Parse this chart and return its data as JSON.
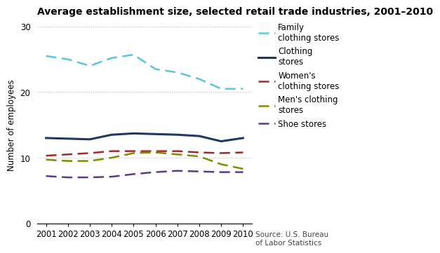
{
  "title": "Average establishment size, selected retail trade industries, 2001–2010",
  "ylabel": "Number of employees",
  "source": "Source: U.S. Bureau\nof Labor Statistics",
  "years": [
    2001,
    2002,
    2003,
    2004,
    2005,
    2006,
    2007,
    2008,
    2009,
    2010
  ],
  "series": [
    {
      "label": "Family\nclothing stores",
      "color": "#5BC8D5",
      "linestyle": "dashed",
      "linewidth": 1.8,
      "values": [
        25.5,
        25.0,
        24.0,
        25.2,
        25.7,
        23.5,
        23.0,
        22.0,
        20.5,
        20.5
      ]
    },
    {
      "label": "Clothing\nstores",
      "color": "#1F3864",
      "linestyle": "solid",
      "linewidth": 2.2,
      "values": [
        13.0,
        12.9,
        12.8,
        13.5,
        13.7,
        13.6,
        13.5,
        13.3,
        12.5,
        13.0
      ]
    },
    {
      "label": "Women's\nclothing stores",
      "color": "#9E2A2A",
      "linestyle": "dashed",
      "linewidth": 1.8,
      "values": [
        10.3,
        10.5,
        10.7,
        11.0,
        11.0,
        11.0,
        11.0,
        10.8,
        10.7,
        10.8
      ]
    },
    {
      "label": "Men's clothing\nstores",
      "color": "#7F8C00",
      "linestyle": "dashed",
      "linewidth": 1.8,
      "values": [
        9.7,
        9.5,
        9.5,
        10.0,
        10.7,
        10.8,
        10.5,
        10.2,
        9.0,
        8.3
      ]
    },
    {
      "label": "Shoe stores",
      "color": "#5B3A8C",
      "linestyle": "dashed",
      "linewidth": 1.8,
      "values": [
        7.2,
        7.0,
        7.0,
        7.1,
        7.5,
        7.8,
        8.0,
        7.9,
        7.8,
        7.8
      ]
    }
  ],
  "ylim": [
    0,
    30
  ],
  "yticks": [
    0,
    10,
    20,
    30
  ],
  "background_color": "#ffffff",
  "grid_color": "#bbbbbb",
  "title_fontsize": 10,
  "label_fontsize": 8.5,
  "tick_fontsize": 8.5,
  "legend_fontsize": 8.5
}
